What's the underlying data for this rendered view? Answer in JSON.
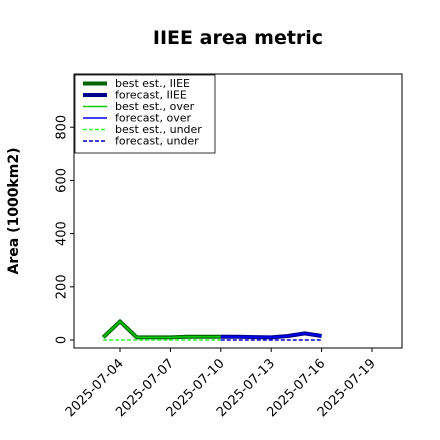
{
  "chart_data": {
    "type": "line",
    "title": "IIEE area metric",
    "ylabel": "Area (1000km2)",
    "xlabel": "",
    "ylim": [
      -30,
      1000
    ],
    "y_ticks": [
      0,
      200,
      400,
      600,
      800
    ],
    "x_ticks": [
      "2025-07-04",
      "2025-07-07",
      "2025-07-10",
      "2025-07-13",
      "2025-07-16",
      "2025-07-19"
    ],
    "x_tick_colors": [
      "#000000",
      "#000000",
      "#228b22",
      "#000000",
      "#000000",
      "#000000"
    ],
    "legend_position": "top-left",
    "series": [
      {
        "name": "best est., IIEE",
        "color": "#006400",
        "style": "solid",
        "width": 4,
        "x": [
          "2025-07-03",
          "2025-07-04",
          "2025-07-05",
          "2025-07-07",
          "2025-07-08",
          "2025-07-10"
        ],
        "values": [
          10,
          70,
          10,
          10,
          12,
          12
        ]
      },
      {
        "name": "forecast, IIEE",
        "color": "#00008b",
        "style": "solid",
        "width": 4,
        "x": [
          "2025-07-10",
          "2025-07-11",
          "2025-07-13",
          "2025-07-14",
          "2025-07-15",
          "2025-07-16"
        ],
        "values": [
          12,
          12,
          10,
          15,
          25,
          15
        ]
      },
      {
        "name": "best est., over",
        "color": "#00cc00",
        "style": "solid",
        "width": 1.5,
        "x": [
          "2025-07-03",
          "2025-07-04",
          "2025-07-05",
          "2025-07-07",
          "2025-07-08",
          "2025-07-10"
        ],
        "values": [
          10,
          70,
          10,
          10,
          12,
          12
        ]
      },
      {
        "name": "forecast, over",
        "color": "#0000ff",
        "style": "solid",
        "width": 1.5,
        "x": [
          "2025-07-10",
          "2025-07-11",
          "2025-07-13",
          "2025-07-14",
          "2025-07-15",
          "2025-07-16"
        ],
        "values": [
          12,
          12,
          10,
          15,
          25,
          15
        ]
      },
      {
        "name": "best est., under",
        "color": "#33ff33",
        "style": "dashed",
        "width": 1.5,
        "x": [
          "2025-07-03",
          "2025-07-04",
          "2025-07-05",
          "2025-07-07",
          "2025-07-10"
        ],
        "values": [
          0,
          0,
          0,
          0,
          0
        ]
      },
      {
        "name": "forecast, under",
        "color": "#0000cc",
        "style": "dashed",
        "width": 1.5,
        "x": [
          "2025-07-10",
          "2025-07-13",
          "2025-07-16"
        ],
        "values": [
          0,
          0,
          0
        ]
      }
    ]
  }
}
